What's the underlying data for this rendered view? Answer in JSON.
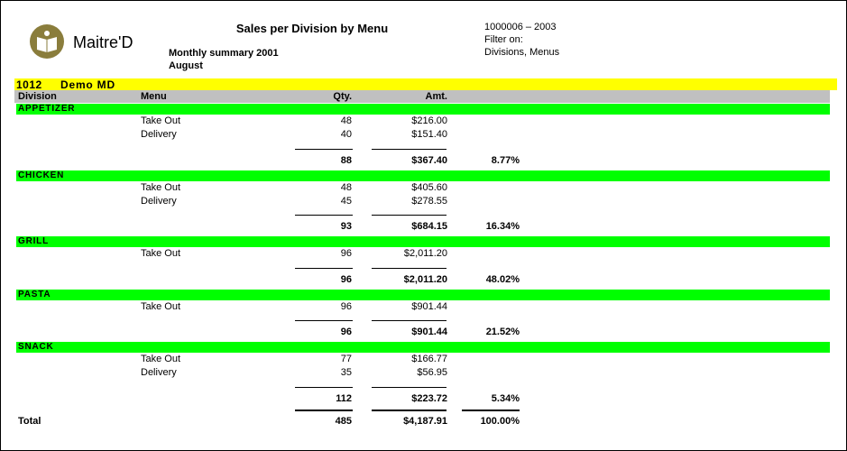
{
  "header": {
    "logo_text": "Maitre'D",
    "title": "Sales per Division by Menu",
    "subtitle": "Monthly summary 2001",
    "period": "August",
    "report_id": "1000006 – 2003",
    "filter_label": "Filter on:",
    "filter_value": "Divisions, Menus"
  },
  "store": {
    "number": "1012",
    "name": "Demo MD"
  },
  "columns": [
    "Division",
    "Menu",
    "Qty.",
    "Amt."
  ],
  "divisions": [
    {
      "name": "APPETIZER",
      "rows": [
        {
          "menu": "Take Out",
          "qty": "48",
          "amt": "$216.00"
        },
        {
          "menu": "Delivery",
          "qty": "40",
          "amt": "$151.40"
        }
      ],
      "total": {
        "qty": "88",
        "amt": "$367.40",
        "pct": "8.77%"
      }
    },
    {
      "name": "CHICKEN",
      "rows": [
        {
          "menu": "Take Out",
          "qty": "48",
          "amt": "$405.60"
        },
        {
          "menu": "Delivery",
          "qty": "45",
          "amt": "$278.55"
        }
      ],
      "total": {
        "qty": "93",
        "amt": "$684.15",
        "pct": "16.34%"
      }
    },
    {
      "name": "GRILL",
      "rows": [
        {
          "menu": "Take Out",
          "qty": "96",
          "amt": "$2,011.20"
        }
      ],
      "total": {
        "qty": "96",
        "amt": "$2,011.20",
        "pct": "48.02%"
      }
    },
    {
      "name": "PASTA",
      "rows": [
        {
          "menu": "Take Out",
          "qty": "96",
          "amt": "$901.44"
        }
      ],
      "total": {
        "qty": "96",
        "amt": "$901.44",
        "pct": "21.52%"
      }
    },
    {
      "name": "SNACK",
      "rows": [
        {
          "menu": "Take Out",
          "qty": "77",
          "amt": "$166.77"
        },
        {
          "menu": "Delivery",
          "qty": "35",
          "amt": "$56.95"
        }
      ],
      "total": {
        "qty": "112",
        "amt": "$223.72",
        "pct": "5.34%"
      }
    }
  ],
  "total": {
    "label": "Total",
    "qty": "485",
    "amt": "$4,187.91",
    "pct": "100.00%"
  }
}
